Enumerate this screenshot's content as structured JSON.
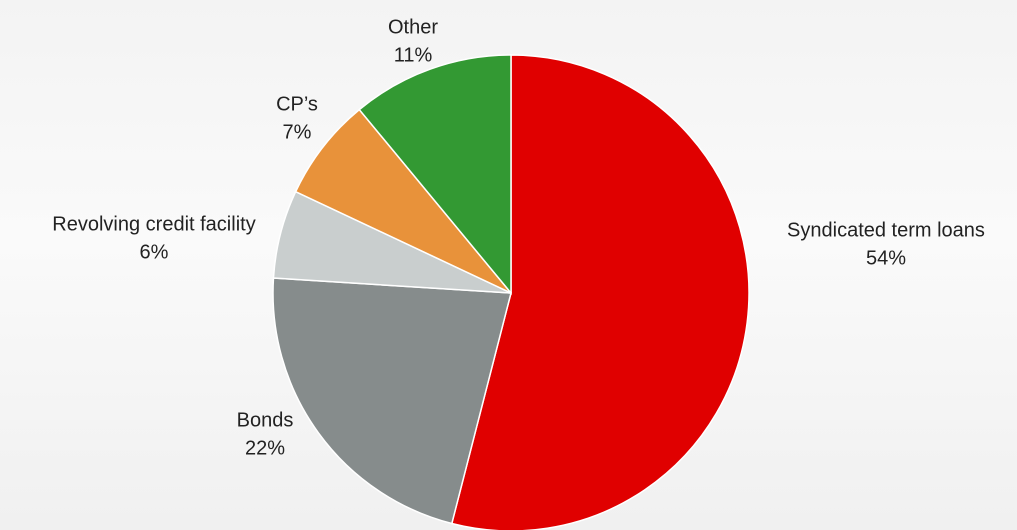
{
  "chart_data": {
    "type": "pie",
    "categories": [
      "Syndicated term loans",
      "Bonds",
      "Revolving credit facility",
      "CP’s",
      "Other"
    ],
    "values": [
      54,
      22,
      6,
      7,
      11
    ],
    "value_labels": [
      "54%",
      "22%",
      "6%",
      "7%",
      "11%"
    ],
    "colors": [
      "#e00000",
      "#868c8c",
      "#c9cece",
      "#e8923a",
      "#339933"
    ]
  }
}
